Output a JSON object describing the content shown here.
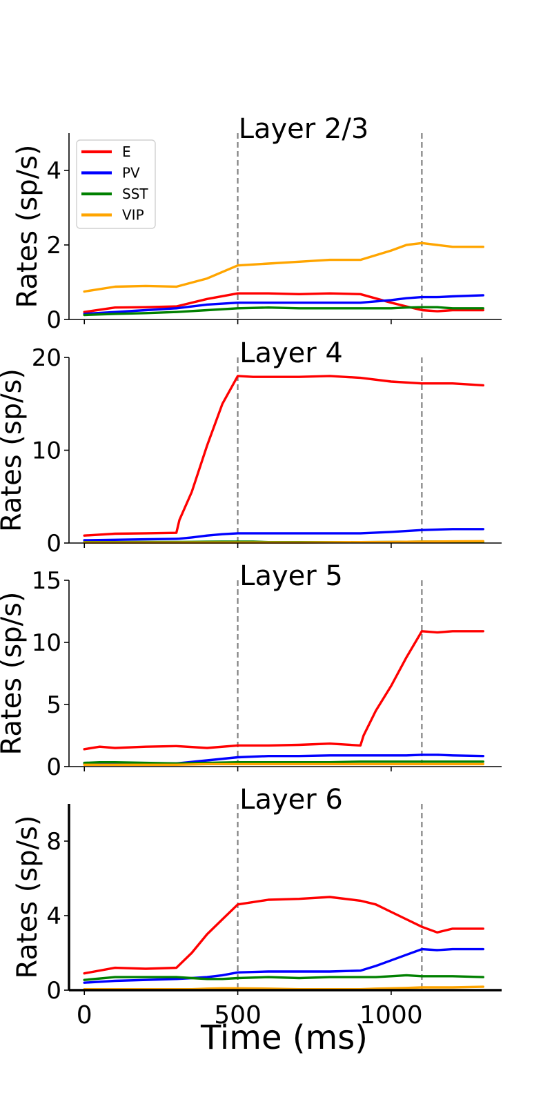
{
  "figure": {
    "xlabel": "Time (ms)",
    "ylabel": "Rates (sp/s)",
    "xticks": [
      0,
      500,
      1000
    ],
    "xlim": [
      -50,
      1360
    ],
    "stim_lines": [
      500,
      1100
    ],
    "legend": {
      "placement": "top-left",
      "entries": [
        {
          "label": "E",
          "color": "#ff0000"
        },
        {
          "label": "PV",
          "color": "#0000ff"
        },
        {
          "label": "SST",
          "color": "#008000"
        },
        {
          "label": "VIP",
          "color": "#ffa500"
        }
      ]
    }
  },
  "chart_data": [
    {
      "type": "line",
      "title": "Layer 2/3",
      "ylim": [
        0,
        5
      ],
      "yticks": [
        0,
        2,
        4
      ],
      "x": [
        0,
        100,
        200,
        300,
        400,
        500,
        600,
        700,
        800,
        900,
        1000,
        1050,
        1100,
        1150,
        1200,
        1300
      ],
      "series": [
        {
          "name": "E",
          "color": "#ff0000",
          "values": [
            0.2,
            0.32,
            0.33,
            0.35,
            0.55,
            0.7,
            0.7,
            0.68,
            0.7,
            0.68,
            0.45,
            0.35,
            0.25,
            0.22,
            0.25,
            0.25
          ]
        },
        {
          "name": "PV",
          "color": "#0000ff",
          "values": [
            0.15,
            0.2,
            0.25,
            0.3,
            0.4,
            0.45,
            0.45,
            0.45,
            0.45,
            0.45,
            0.52,
            0.57,
            0.6,
            0.6,
            0.62,
            0.65
          ]
        },
        {
          "name": "SST",
          "color": "#008000",
          "values": [
            0.12,
            0.15,
            0.17,
            0.2,
            0.25,
            0.3,
            0.32,
            0.3,
            0.3,
            0.3,
            0.3,
            0.32,
            0.33,
            0.33,
            0.3,
            0.3
          ]
        },
        {
          "name": "VIP",
          "color": "#ffa500",
          "values": [
            0.75,
            0.88,
            0.9,
            0.88,
            1.1,
            1.45,
            1.5,
            1.55,
            1.6,
            1.6,
            1.85,
            2.0,
            2.05,
            2.0,
            1.95,
            1.95
          ]
        }
      ]
    },
    {
      "type": "line",
      "title": "Layer 4",
      "ylim": [
        0,
        20
      ],
      "yticks": [
        0,
        10,
        20
      ],
      "x": [
        0,
        100,
        200,
        300,
        310,
        350,
        400,
        450,
        500,
        550,
        600,
        700,
        800,
        900,
        1000,
        1100,
        1200,
        1300
      ],
      "series": [
        {
          "name": "E",
          "color": "#ff0000",
          "values": [
            0.8,
            1.0,
            1.05,
            1.1,
            2.5,
            5.5,
            10.5,
            15.0,
            18.0,
            17.9,
            17.9,
            17.9,
            18.0,
            17.8,
            17.4,
            17.2,
            17.2,
            17.0
          ]
        },
        {
          "name": "PV",
          "color": "#0000ff",
          "values": [
            0.3,
            0.35,
            0.4,
            0.45,
            0.47,
            0.6,
            0.8,
            0.95,
            1.05,
            1.05,
            1.05,
            1.05,
            1.05,
            1.05,
            1.2,
            1.4,
            1.5,
            1.5
          ]
        },
        {
          "name": "SST",
          "color": "#008000",
          "values": [
            0.1,
            0.1,
            0.12,
            0.12,
            0.12,
            0.13,
            0.14,
            0.15,
            0.15,
            0.15,
            0.1,
            0.1,
            0.1,
            0.1,
            0.12,
            0.15,
            0.15,
            0.15
          ]
        },
        {
          "name": "VIP",
          "color": "#ffa500",
          "values": [
            0.05,
            0.05,
            0.05,
            0.05,
            0.05,
            0.05,
            0.05,
            0.05,
            0.05,
            0.05,
            0.05,
            0.05,
            0.08,
            0.1,
            0.12,
            0.15,
            0.18,
            0.2
          ]
        }
      ]
    },
    {
      "type": "line",
      "title": "Layer 5",
      "ylim": [
        0,
        15
      ],
      "yticks": [
        0,
        5,
        10,
        15
      ],
      "x": [
        0,
        50,
        100,
        200,
        300,
        400,
        500,
        600,
        700,
        800,
        900,
        910,
        950,
        1000,
        1050,
        1100,
        1150,
        1200,
        1300
      ],
      "series": [
        {
          "name": "E",
          "color": "#ff0000",
          "values": [
            1.4,
            1.6,
            1.5,
            1.6,
            1.65,
            1.5,
            1.7,
            1.7,
            1.75,
            1.85,
            1.7,
            2.5,
            4.5,
            6.5,
            8.8,
            10.9,
            10.8,
            10.9,
            10.9
          ]
        },
        {
          "name": "PV",
          "color": "#0000ff",
          "values": [
            0.2,
            0.25,
            0.25,
            0.25,
            0.25,
            0.5,
            0.75,
            0.85,
            0.85,
            0.9,
            0.9,
            0.9,
            0.9,
            0.9,
            0.9,
            0.95,
            0.95,
            0.9,
            0.85
          ]
        },
        {
          "name": "SST",
          "color": "#008000",
          "values": [
            0.3,
            0.35,
            0.35,
            0.3,
            0.25,
            0.3,
            0.35,
            0.35,
            0.35,
            0.35,
            0.4,
            0.4,
            0.4,
            0.4,
            0.4,
            0.4,
            0.4,
            0.4,
            0.4
          ]
        },
        {
          "name": "VIP",
          "color": "#ffa500",
          "values": [
            0.15,
            0.15,
            0.15,
            0.15,
            0.15,
            0.2,
            0.2,
            0.2,
            0.2,
            0.2,
            0.2,
            0.2,
            0.2,
            0.2,
            0.2,
            0.2,
            0.2,
            0.2,
            0.2
          ]
        }
      ]
    },
    {
      "type": "line",
      "title": "Layer 6",
      "ylim": [
        0,
        10
      ],
      "yticks": [
        0,
        4,
        8
      ],
      "x": [
        0,
        100,
        200,
        300,
        350,
        400,
        450,
        500,
        600,
        700,
        800,
        900,
        950,
        1000,
        1050,
        1100,
        1150,
        1200,
        1300
      ],
      "series": [
        {
          "name": "E",
          "color": "#ff0000",
          "values": [
            0.9,
            1.2,
            1.15,
            1.2,
            2.0,
            3.0,
            3.8,
            4.6,
            4.85,
            4.9,
            5.0,
            4.8,
            4.6,
            4.2,
            3.8,
            3.4,
            3.1,
            3.3,
            3.3
          ]
        },
        {
          "name": "PV",
          "color": "#0000ff",
          "values": [
            0.4,
            0.5,
            0.55,
            0.6,
            0.65,
            0.7,
            0.8,
            0.95,
            1.0,
            1.0,
            1.0,
            1.05,
            1.3,
            1.6,
            1.9,
            2.2,
            2.15,
            2.2,
            2.2
          ]
        },
        {
          "name": "SST",
          "color": "#008000",
          "values": [
            0.55,
            0.7,
            0.7,
            0.7,
            0.65,
            0.6,
            0.6,
            0.65,
            0.7,
            0.65,
            0.7,
            0.7,
            0.7,
            0.75,
            0.8,
            0.75,
            0.75,
            0.75,
            0.7
          ]
        },
        {
          "name": "VIP",
          "color": "#ffa500",
          "values": [
            0.05,
            0.05,
            0.05,
            0.05,
            0.05,
            0.08,
            0.1,
            0.1,
            0.08,
            0.05,
            0.05,
            0.05,
            0.08,
            0.1,
            0.12,
            0.15,
            0.15,
            0.15,
            0.18
          ]
        }
      ]
    }
  ]
}
